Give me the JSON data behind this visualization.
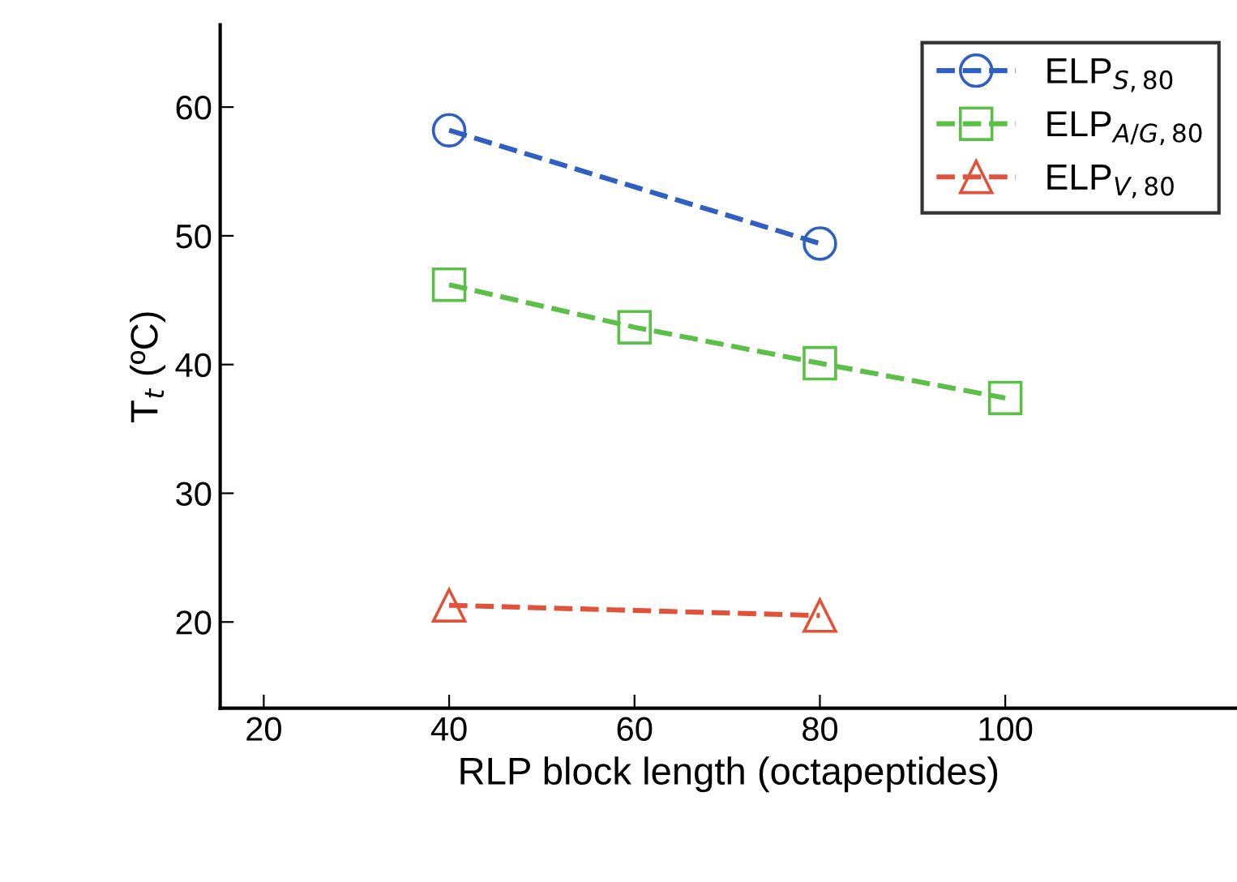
{
  "chart_data": {
    "type": "line",
    "xlabel": "RLP block length (octapeptides)",
    "ylabel": "T$_{t}$ (ºC)",
    "xlim": [
      15.3,
      125
    ],
    "xticks": [
      20,
      40,
      60,
      80,
      100
    ],
    "ylim": [
      13.3,
      66.4
    ],
    "yticks": [
      20,
      30,
      40,
      50,
      60
    ],
    "grid": false,
    "legend": "top right",
    "line_style": "dashed",
    "series": [
      {
        "name": "ELP$_{S,80}$",
        "color": "#2f5fc0",
        "marker": "circle",
        "x": [
          40,
          80
        ],
        "values": [
          58.2,
          49.4
        ]
      },
      {
        "name": "ELP$_{A/G,80}$",
        "color": "#5cbf47",
        "marker": "square",
        "x": [
          40,
          60,
          80,
          100
        ],
        "values": [
          46.2,
          42.9,
          40.1,
          37.4
        ]
      },
      {
        "name": "ELP$_{V,80}$",
        "color": "#e0533a",
        "marker": "triangle",
        "x": [
          40,
          80
        ],
        "values": [
          21.3,
          20.5
        ]
      }
    ]
  }
}
